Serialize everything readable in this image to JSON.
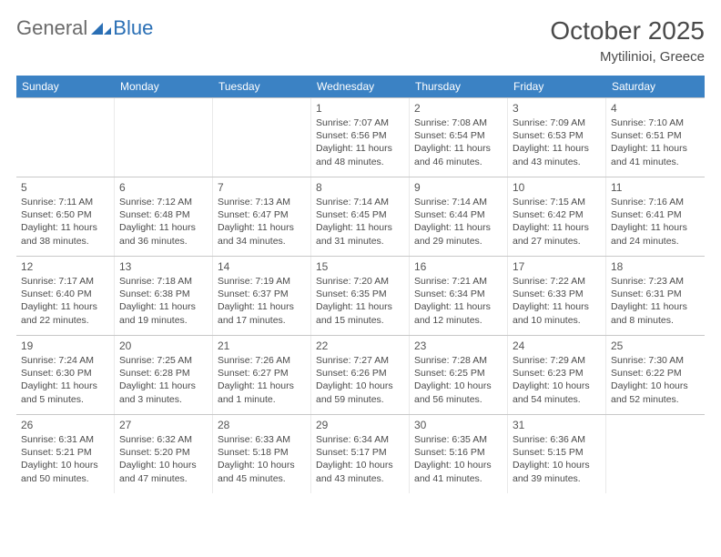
{
  "logo": {
    "general": "General",
    "blue": "Blue"
  },
  "title": "October 2025",
  "location": "Mytilinioi, Greece",
  "colors": {
    "header_bg": "#3b82c4",
    "header_text": "#ffffff",
    "text_dark": "#4a4a4a",
    "text_gray": "#6a6a6a",
    "logo_blue": "#2a6fb5",
    "border": "#c8c8c8",
    "page_bg": "#ffffff"
  },
  "weekdays": [
    "Sunday",
    "Monday",
    "Tuesday",
    "Wednesday",
    "Thursday",
    "Friday",
    "Saturday"
  ],
  "weeks": [
    [
      {
        "num": "",
        "sunrise": "",
        "sunset": "",
        "daylight": ""
      },
      {
        "num": "",
        "sunrise": "",
        "sunset": "",
        "daylight": ""
      },
      {
        "num": "",
        "sunrise": "",
        "sunset": "",
        "daylight": ""
      },
      {
        "num": "1",
        "sunrise": "Sunrise: 7:07 AM",
        "sunset": "Sunset: 6:56 PM",
        "daylight": "Daylight: 11 hours and 48 minutes."
      },
      {
        "num": "2",
        "sunrise": "Sunrise: 7:08 AM",
        "sunset": "Sunset: 6:54 PM",
        "daylight": "Daylight: 11 hours and 46 minutes."
      },
      {
        "num": "3",
        "sunrise": "Sunrise: 7:09 AM",
        "sunset": "Sunset: 6:53 PM",
        "daylight": "Daylight: 11 hours and 43 minutes."
      },
      {
        "num": "4",
        "sunrise": "Sunrise: 7:10 AM",
        "sunset": "Sunset: 6:51 PM",
        "daylight": "Daylight: 11 hours and 41 minutes."
      }
    ],
    [
      {
        "num": "5",
        "sunrise": "Sunrise: 7:11 AM",
        "sunset": "Sunset: 6:50 PM",
        "daylight": "Daylight: 11 hours and 38 minutes."
      },
      {
        "num": "6",
        "sunrise": "Sunrise: 7:12 AM",
        "sunset": "Sunset: 6:48 PM",
        "daylight": "Daylight: 11 hours and 36 minutes."
      },
      {
        "num": "7",
        "sunrise": "Sunrise: 7:13 AM",
        "sunset": "Sunset: 6:47 PM",
        "daylight": "Daylight: 11 hours and 34 minutes."
      },
      {
        "num": "8",
        "sunrise": "Sunrise: 7:14 AM",
        "sunset": "Sunset: 6:45 PM",
        "daylight": "Daylight: 11 hours and 31 minutes."
      },
      {
        "num": "9",
        "sunrise": "Sunrise: 7:14 AM",
        "sunset": "Sunset: 6:44 PM",
        "daylight": "Daylight: 11 hours and 29 minutes."
      },
      {
        "num": "10",
        "sunrise": "Sunrise: 7:15 AM",
        "sunset": "Sunset: 6:42 PM",
        "daylight": "Daylight: 11 hours and 27 minutes."
      },
      {
        "num": "11",
        "sunrise": "Sunrise: 7:16 AM",
        "sunset": "Sunset: 6:41 PM",
        "daylight": "Daylight: 11 hours and 24 minutes."
      }
    ],
    [
      {
        "num": "12",
        "sunrise": "Sunrise: 7:17 AM",
        "sunset": "Sunset: 6:40 PM",
        "daylight": "Daylight: 11 hours and 22 minutes."
      },
      {
        "num": "13",
        "sunrise": "Sunrise: 7:18 AM",
        "sunset": "Sunset: 6:38 PM",
        "daylight": "Daylight: 11 hours and 19 minutes."
      },
      {
        "num": "14",
        "sunrise": "Sunrise: 7:19 AM",
        "sunset": "Sunset: 6:37 PM",
        "daylight": "Daylight: 11 hours and 17 minutes."
      },
      {
        "num": "15",
        "sunrise": "Sunrise: 7:20 AM",
        "sunset": "Sunset: 6:35 PM",
        "daylight": "Daylight: 11 hours and 15 minutes."
      },
      {
        "num": "16",
        "sunrise": "Sunrise: 7:21 AM",
        "sunset": "Sunset: 6:34 PM",
        "daylight": "Daylight: 11 hours and 12 minutes."
      },
      {
        "num": "17",
        "sunrise": "Sunrise: 7:22 AM",
        "sunset": "Sunset: 6:33 PM",
        "daylight": "Daylight: 11 hours and 10 minutes."
      },
      {
        "num": "18",
        "sunrise": "Sunrise: 7:23 AM",
        "sunset": "Sunset: 6:31 PM",
        "daylight": "Daylight: 11 hours and 8 minutes."
      }
    ],
    [
      {
        "num": "19",
        "sunrise": "Sunrise: 7:24 AM",
        "sunset": "Sunset: 6:30 PM",
        "daylight": "Daylight: 11 hours and 5 minutes."
      },
      {
        "num": "20",
        "sunrise": "Sunrise: 7:25 AM",
        "sunset": "Sunset: 6:28 PM",
        "daylight": "Daylight: 11 hours and 3 minutes."
      },
      {
        "num": "21",
        "sunrise": "Sunrise: 7:26 AM",
        "sunset": "Sunset: 6:27 PM",
        "daylight": "Daylight: 11 hours and 1 minute."
      },
      {
        "num": "22",
        "sunrise": "Sunrise: 7:27 AM",
        "sunset": "Sunset: 6:26 PM",
        "daylight": "Daylight: 10 hours and 59 minutes."
      },
      {
        "num": "23",
        "sunrise": "Sunrise: 7:28 AM",
        "sunset": "Sunset: 6:25 PM",
        "daylight": "Daylight: 10 hours and 56 minutes."
      },
      {
        "num": "24",
        "sunrise": "Sunrise: 7:29 AM",
        "sunset": "Sunset: 6:23 PM",
        "daylight": "Daylight: 10 hours and 54 minutes."
      },
      {
        "num": "25",
        "sunrise": "Sunrise: 7:30 AM",
        "sunset": "Sunset: 6:22 PM",
        "daylight": "Daylight: 10 hours and 52 minutes."
      }
    ],
    [
      {
        "num": "26",
        "sunrise": "Sunrise: 6:31 AM",
        "sunset": "Sunset: 5:21 PM",
        "daylight": "Daylight: 10 hours and 50 minutes."
      },
      {
        "num": "27",
        "sunrise": "Sunrise: 6:32 AM",
        "sunset": "Sunset: 5:20 PM",
        "daylight": "Daylight: 10 hours and 47 minutes."
      },
      {
        "num": "28",
        "sunrise": "Sunrise: 6:33 AM",
        "sunset": "Sunset: 5:18 PM",
        "daylight": "Daylight: 10 hours and 45 minutes."
      },
      {
        "num": "29",
        "sunrise": "Sunrise: 6:34 AM",
        "sunset": "Sunset: 5:17 PM",
        "daylight": "Daylight: 10 hours and 43 minutes."
      },
      {
        "num": "30",
        "sunrise": "Sunrise: 6:35 AM",
        "sunset": "Sunset: 5:16 PM",
        "daylight": "Daylight: 10 hours and 41 minutes."
      },
      {
        "num": "31",
        "sunrise": "Sunrise: 6:36 AM",
        "sunset": "Sunset: 5:15 PM",
        "daylight": "Daylight: 10 hours and 39 minutes."
      },
      {
        "num": "",
        "sunrise": "",
        "sunset": "",
        "daylight": ""
      }
    ]
  ]
}
